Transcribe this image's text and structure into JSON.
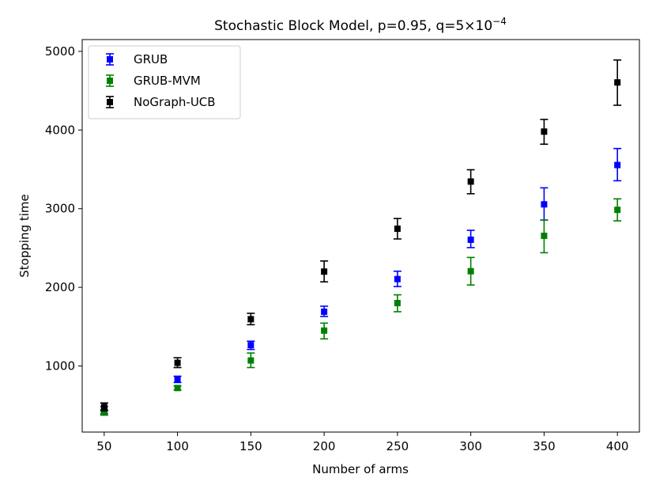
{
  "chart_data": {
    "type": "scatter",
    "title": "Stochastic Block Model, p=0.95, q=5×10",
    "title_superscript": "−4",
    "xlabel": "Number of arms",
    "ylabel": "Stopping time",
    "xlim": [
      35,
      415
    ],
    "ylim": [
      160,
      5150
    ],
    "x": [
      50,
      100,
      150,
      200,
      250,
      300,
      350,
      400
    ],
    "xticks": [
      50,
      100,
      150,
      200,
      250,
      300,
      350,
      400
    ],
    "yticks": [
      1000,
      2000,
      3000,
      4000,
      5000
    ],
    "grid": false,
    "legend_position": "top-left",
    "series": [
      {
        "name": "GRUB",
        "color": "#0000ff",
        "values": [
          440,
          830,
          1265,
          1690,
          2105,
          2605,
          3055,
          3555
        ],
        "err_low": [
          395,
          790,
          1210,
          1630,
          2010,
          2505,
          2855,
          3355
        ],
        "err_high": [
          485,
          870,
          1315,
          1760,
          2205,
          2725,
          3265,
          3765
        ]
      },
      {
        "name": "GRUB-MVM",
        "color": "#008000",
        "values": [
          410,
          720,
          1070,
          1450,
          1800,
          2205,
          2655,
          2985
        ],
        "err_low": [
          375,
          695,
          980,
          1345,
          1690,
          2030,
          2440,
          2845
        ],
        "err_high": [
          445,
          745,
          1165,
          1545,
          1905,
          2380,
          2855,
          3125
        ]
      },
      {
        "name": "NoGraph-UCB",
        "color": "#000000",
        "values": [
          480,
          1040,
          1595,
          2200,
          2745,
          3345,
          3980,
          4605
        ],
        "err_low": [
          430,
          980,
          1525,
          2070,
          2615,
          3190,
          3820,
          4315
        ],
        "err_high": [
          530,
          1105,
          1670,
          2335,
          2875,
          3495,
          4135,
          4890
        ]
      }
    ]
  }
}
